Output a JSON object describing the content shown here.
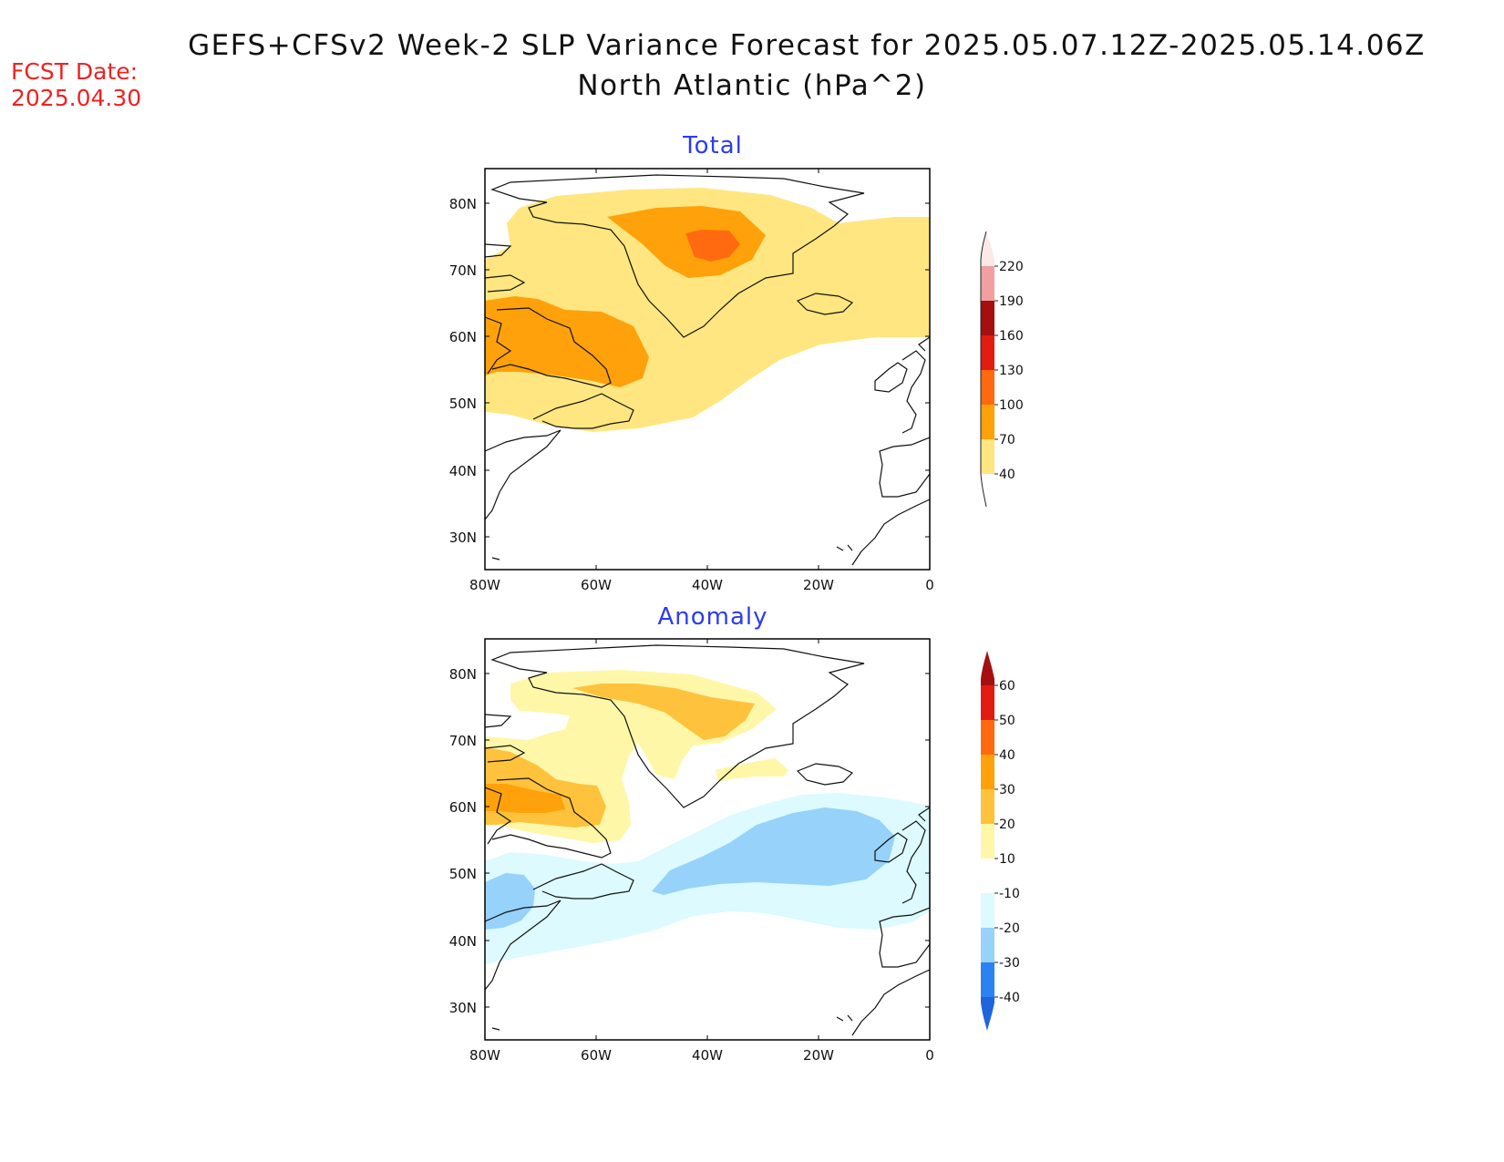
{
  "header": {
    "title_line1": "GEFS+CFSv2 Week-2 SLP Variance Forecast for 2025.05.07.12Z-2025.05.14.06Z",
    "title_line2": "North Atlantic (hPa^2)",
    "fcst_label": "FCST Date:",
    "fcst_date": "2025.04.30"
  },
  "panels": [
    {
      "title": "Total",
      "lat_labels": [
        "80N",
        "70N",
        "60N",
        "50N",
        "40N",
        "30N"
      ],
      "lon_labels": [
        "80W",
        "60W",
        "40W",
        "20W",
        "0"
      ],
      "colorbar": {
        "labels": [
          "220",
          "190",
          "160",
          "130",
          "100",
          "70",
          "40"
        ],
        "colors": [
          "#fde8e8",
          "#f0a0a0",
          "#a50f0f",
          "#e21c12",
          "#ff6a10",
          "#ffa10a",
          "#ffe680"
        ]
      }
    },
    {
      "title": "Anomaly",
      "lat_labels": [
        "80N",
        "70N",
        "60N",
        "50N",
        "40N",
        "30N"
      ],
      "lon_labels": [
        "80W",
        "60W",
        "40W",
        "20W",
        "0"
      ],
      "colorbar": {
        "labels": [
          "60",
          "50",
          "40",
          "30",
          "20",
          "10",
          "-10",
          "-20",
          "-30",
          "-40"
        ],
        "colors": [
          "#a50f0f",
          "#e21c12",
          "#ff6a10",
          "#ffa10a",
          "#ffc23c",
          "#fff7a8",
          "#ffffff",
          "#dcfaff",
          "#96d2fa",
          "#2c82f0",
          "#1e64dc"
        ]
      }
    }
  ]
}
